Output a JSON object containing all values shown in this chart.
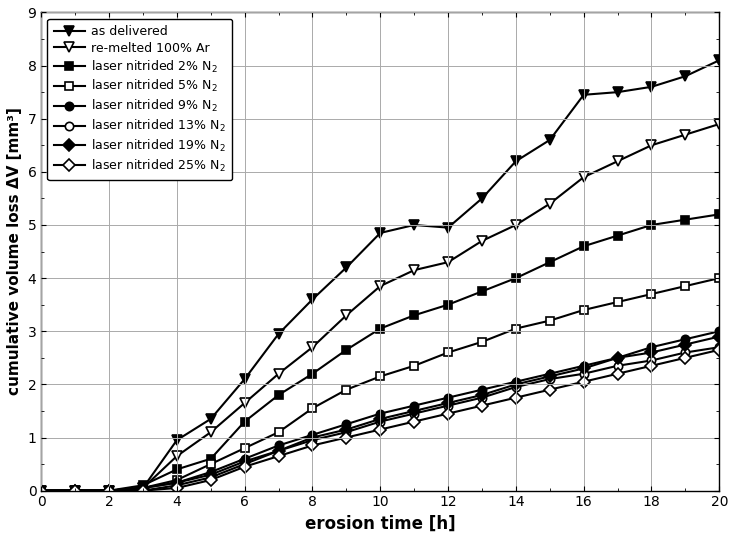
{
  "series": [
    {
      "label": "as delivered",
      "color": "#000000",
      "marker": "v",
      "marker_fill": "black",
      "linewidth": 1.5,
      "markersize": 7,
      "x": [
        0,
        1,
        2,
        3,
        4,
        5,
        6,
        7,
        8,
        9,
        10,
        11,
        12,
        13,
        14,
        15,
        16,
        17,
        18,
        19,
        20
      ],
      "y": [
        0,
        0.0,
        0.0,
        0.05,
        0.95,
        1.35,
        2.1,
        2.95,
        3.6,
        4.2,
        4.85,
        5.0,
        4.95,
        5.5,
        6.2,
        6.6,
        7.45,
        7.5,
        7.6,
        7.8,
        8.1
      ]
    },
    {
      "label": "re-melted 100% Ar",
      "color": "#000000",
      "marker": "v",
      "marker_fill": "none",
      "linewidth": 1.5,
      "markersize": 7,
      "x": [
        0,
        1,
        2,
        3,
        4,
        5,
        6,
        7,
        8,
        9,
        10,
        11,
        12,
        13,
        14,
        15,
        16,
        17,
        18,
        19,
        20
      ],
      "y": [
        0,
        0.0,
        0.0,
        0.05,
        0.65,
        1.1,
        1.65,
        2.2,
        2.7,
        3.3,
        3.85,
        4.15,
        4.3,
        4.7,
        5.0,
        5.4,
        5.9,
        6.2,
        6.5,
        6.7,
        6.9
      ]
    },
    {
      "label": "laser nitrided 2% N$_2$",
      "color": "#000000",
      "marker": "s",
      "marker_fill": "black",
      "linewidth": 1.5,
      "markersize": 6,
      "x": [
        0,
        1,
        2,
        3,
        4,
        5,
        6,
        7,
        8,
        9,
        10,
        11,
        12,
        13,
        14,
        15,
        16,
        17,
        18,
        19,
        20
      ],
      "y": [
        0,
        0.0,
        0.0,
        0.1,
        0.4,
        0.6,
        1.3,
        1.8,
        2.2,
        2.65,
        3.05,
        3.3,
        3.5,
        3.75,
        4.0,
        4.3,
        4.6,
        4.8,
        5.0,
        5.1,
        5.2
      ]
    },
    {
      "label": "laser nitrided 5% N$_2$",
      "color": "#000000",
      "marker": "s",
      "marker_fill": "none",
      "linewidth": 1.5,
      "markersize": 6,
      "x": [
        0,
        1,
        2,
        3,
        4,
        5,
        6,
        7,
        8,
        9,
        10,
        11,
        12,
        13,
        14,
        15,
        16,
        17,
        18,
        19,
        20
      ],
      "y": [
        0,
        0.0,
        0.0,
        0.05,
        0.2,
        0.5,
        0.8,
        1.1,
        1.55,
        1.9,
        2.15,
        2.35,
        2.6,
        2.8,
        3.05,
        3.2,
        3.4,
        3.55,
        3.7,
        3.85,
        4.0
      ]
    },
    {
      "label": "laser nitrided 9% N$_2$",
      "color": "#000000",
      "marker": "o",
      "marker_fill": "black",
      "linewidth": 1.5,
      "markersize": 6,
      "x": [
        0,
        1,
        2,
        3,
        4,
        5,
        6,
        7,
        8,
        9,
        10,
        11,
        12,
        13,
        14,
        15,
        16,
        17,
        18,
        19,
        20
      ],
      "y": [
        0,
        0.0,
        0.0,
        0.05,
        0.15,
        0.35,
        0.6,
        0.85,
        1.05,
        1.25,
        1.45,
        1.6,
        1.75,
        1.9,
        2.05,
        2.2,
        2.35,
        2.5,
        2.7,
        2.85,
        3.0
      ]
    },
    {
      "label": "laser nitrided 13% N$_2$",
      "color": "#000000",
      "marker": "o",
      "marker_fill": "none",
      "linewidth": 1.5,
      "markersize": 6,
      "x": [
        0,
        1,
        2,
        3,
        4,
        5,
        6,
        7,
        8,
        9,
        10,
        11,
        12,
        13,
        14,
        15,
        16,
        17,
        18,
        19,
        20
      ],
      "y": [
        0,
        0.0,
        0.0,
        0.0,
        0.1,
        0.25,
        0.5,
        0.75,
        0.95,
        1.1,
        1.3,
        1.45,
        1.6,
        1.75,
        1.95,
        2.1,
        2.2,
        2.35,
        2.45,
        2.6,
        2.7
      ]
    },
    {
      "label": "laser nitrided 19% N$_2$",
      "color": "#000000",
      "marker": "D",
      "marker_fill": "black",
      "linewidth": 1.5,
      "markersize": 6,
      "x": [
        0,
        1,
        2,
        3,
        4,
        5,
        6,
        7,
        8,
        9,
        10,
        11,
        12,
        13,
        14,
        15,
        16,
        17,
        18,
        19,
        20
      ],
      "y": [
        0,
        0.0,
        0.0,
        0.05,
        0.15,
        0.3,
        0.55,
        0.75,
        1.0,
        1.15,
        1.35,
        1.5,
        1.65,
        1.8,
        2.0,
        2.15,
        2.3,
        2.5,
        2.6,
        2.75,
        2.9
      ]
    },
    {
      "label": "laser nitrided 25% N$_2$",
      "color": "#000000",
      "marker": "D",
      "marker_fill": "none",
      "linewidth": 1.5,
      "markersize": 6,
      "x": [
        0,
        1,
        2,
        3,
        4,
        5,
        6,
        7,
        8,
        9,
        10,
        11,
        12,
        13,
        14,
        15,
        16,
        17,
        18,
        19,
        20
      ],
      "y": [
        0,
        0.0,
        0.0,
        0.0,
        0.05,
        0.2,
        0.45,
        0.65,
        0.85,
        1.0,
        1.15,
        1.3,
        1.45,
        1.6,
        1.75,
        1.9,
        2.05,
        2.2,
        2.35,
        2.5,
        2.65
      ]
    }
  ],
  "xlabel": "erosion time [h]",
  "ylabel": "cumulative volume loss ΔV [mm³]",
  "xlim": [
    0,
    20
  ],
  "ylim": [
    0,
    9
  ],
  "xticks": [
    0,
    2,
    4,
    6,
    8,
    10,
    12,
    14,
    16,
    18,
    20
  ],
  "yticks": [
    0,
    1,
    2,
    3,
    4,
    5,
    6,
    7,
    8,
    9
  ],
  "grid": true,
  "background_color": "#ffffff",
  "legend_loc": "upper left",
  "figsize": [
    7.35,
    5.4
  ],
  "dpi": 100
}
